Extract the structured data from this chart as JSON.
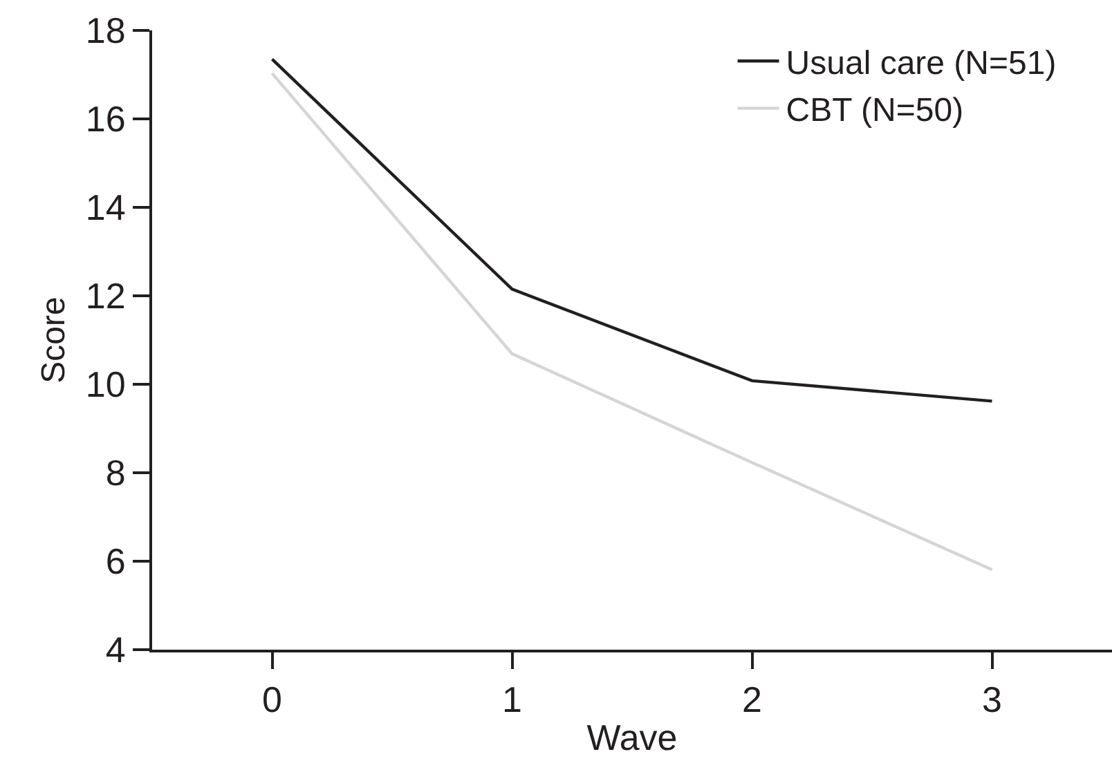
{
  "chart_data": {
    "type": "line",
    "xlabel": "Wave",
    "ylabel": "Score",
    "x": [
      0,
      1,
      2,
      3
    ],
    "series": [
      {
        "name": "Usual care (N=51)",
        "color": "#231f20",
        "values": [
          17.35,
          12.15,
          10.08,
          9.62
        ]
      },
      {
        "name": "CBT (N=50)",
        "color": "#d4d5d8",
        "values": [
          17.03,
          10.69,
          8.23,
          5.81
        ]
      }
    ],
    "xlim": [
      -0.5,
      3.5
    ],
    "xticks": [
      0,
      1,
      2,
      3
    ],
    "ylim": [
      4,
      18
    ],
    "yticks": [
      4,
      6,
      8,
      10,
      12,
      14,
      16,
      18
    ],
    "legend": "top right",
    "marker": "none",
    "line_style": "solid"
  }
}
